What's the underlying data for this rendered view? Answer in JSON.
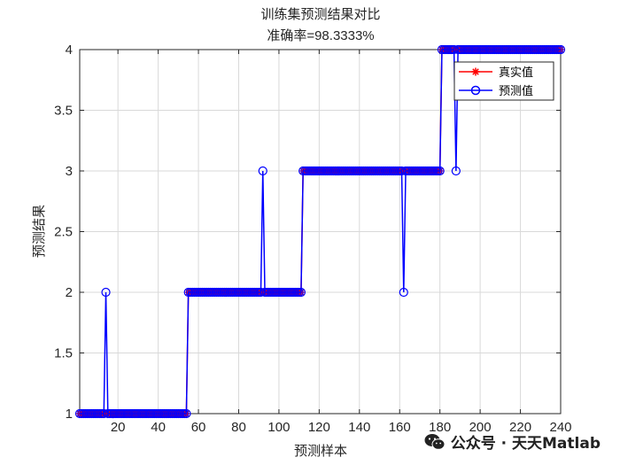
{
  "chart_data": {
    "type": "line",
    "title": "训练集预测结果对比",
    "subtitle": "准确率=98.3333%",
    "xlabel": "预测样本",
    "ylabel": "预测结果",
    "xlim": [
      1,
      240
    ],
    "ylim": [
      1,
      4
    ],
    "x_ticks": [
      20,
      40,
      60,
      80,
      100,
      120,
      140,
      160,
      180,
      200,
      220,
      240
    ],
    "y_ticks": [
      1,
      1.5,
      2,
      2.5,
      3,
      3.5,
      4
    ],
    "x_tick_labels": [
      "20",
      "40",
      "60",
      "80",
      "100",
      "120",
      "140",
      "160",
      "180",
      "200",
      "220",
      "240"
    ],
    "y_tick_labels": [
      "1",
      "1.5",
      "2",
      "2.5",
      "3",
      "3.5",
      "4"
    ],
    "grid": true,
    "legend_position": "top-right",
    "series": [
      {
        "name": "真实值",
        "color": "#ff0000",
        "marker": "asterisk",
        "segments": [
          {
            "from": 1,
            "to": 54,
            "value": 1
          },
          {
            "from": 55,
            "to": 111,
            "value": 2
          },
          {
            "from": 112,
            "to": 180,
            "value": 3
          },
          {
            "from": 181,
            "to": 240,
            "value": 4
          }
        ]
      },
      {
        "name": "预测值",
        "color": "#0000ff",
        "marker": "circle",
        "segments": [
          {
            "from": 1,
            "to": 54,
            "value": 1
          },
          {
            "from": 55,
            "to": 111,
            "value": 2
          },
          {
            "from": 112,
            "to": 180,
            "value": 3
          },
          {
            "from": 181,
            "to": 240,
            "value": 4
          }
        ],
        "misclassified": [
          {
            "x": 14,
            "y": 2
          },
          {
            "x": 92,
            "y": 3
          },
          {
            "x": 162,
            "y": 2
          },
          {
            "x": 188,
            "y": 3
          }
        ]
      }
    ]
  },
  "watermark": {
    "text": "公众号 · 天天Matlab",
    "icon": "wechat-icon"
  }
}
